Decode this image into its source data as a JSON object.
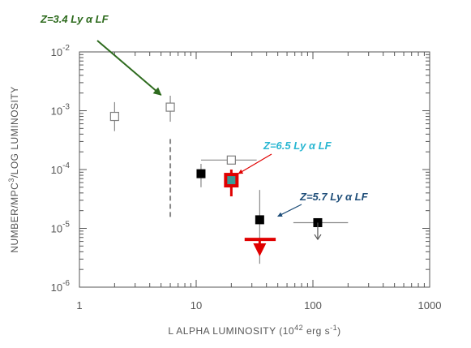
{
  "chart_data": {
    "type": "scatter",
    "title": "",
    "xlabel": "L ALPHA LUMINOSITY (10",
    "xlabel_sup": "42",
    "xlabel_unit": " erg s",
    "xlabel_unit_sup": "-1",
    "xlabel_close": ")",
    "ylabel": "NUMBER/MPC",
    "ylabel_sup": "3",
    "ylabel_rest": "/LOG LUMINOSITY",
    "x_scale": "log",
    "y_scale": "log",
    "xlim": [
      1,
      1000
    ],
    "ylim": [
      1e-06,
      0.01
    ],
    "grid": false,
    "x_ticks": [
      {
        "value": 1,
        "label": "1"
      },
      {
        "value": 10,
        "label": "10"
      },
      {
        "value": 100,
        "label": "100"
      },
      {
        "value": 1000,
        "label": "1000"
      }
    ],
    "y_ticks": [
      {
        "value": 1e-06,
        "base": "10",
        "exp": "-6"
      },
      {
        "value": 1e-05,
        "base": "10",
        "exp": "-5"
      },
      {
        "value": 0.0001,
        "base": "10",
        "exp": "-4"
      },
      {
        "value": 0.001,
        "base": "10",
        "exp": "-3"
      },
      {
        "value": 0.01,
        "base": "10",
        "exp": "-2"
      }
    ],
    "series": [
      {
        "name": "Z=3.4 Ly α LF",
        "marker": "open-square",
        "color": "#808080",
        "points": [
          {
            "x": 2.0,
            "y": 0.0008,
            "ylo": 0.00045,
            "yhi": 0.0014
          },
          {
            "x": 6.0,
            "y": 0.00115,
            "ylo": 0.00065,
            "yhi": 0.0018
          }
        ]
      },
      {
        "name": "Z=5.7 Ly α LF",
        "marker": "filled-square",
        "color": "#000000",
        "points": [
          {
            "x": 11,
            "y": 8.5e-05,
            "ylo": 5e-05,
            "yhi": 0.000125
          },
          {
            "x": 35,
            "y": 1.4e-05,
            "ylo": 6e-06,
            "yhi": 4.5e-05
          },
          {
            "x": 110,
            "y": 1.25e-05,
            "xlo": 68,
            "xhi": 200,
            "arrow_to": 6.5e-06
          }
        ]
      },
      {
        "name": "Z=6.5 Ly α LF",
        "marker": "teal-square",
        "color": "#e00000",
        "fill": "#3a9a96",
        "points": [
          {
            "x": 20,
            "y": 6.6e-05,
            "ylo": 3.5e-05,
            "yhi": 0.0001
          }
        ]
      },
      {
        "name": "",
        "marker": "open-square",
        "color": "#808080",
        "points": [
          {
            "x": 20,
            "y": 0.000145,
            "xlo": 11,
            "xhi": 33
          }
        ]
      },
      {
        "name": "",
        "marker": "upper-limit",
        "color": "#e00000",
        "points": [
          {
            "x": 35,
            "y": 6.5e-06,
            "xlo": 26,
            "xhi": 48,
            "ylo": 2.5e-06,
            "arrow_to": 3.8e-06
          }
        ]
      }
    ],
    "dashed_line": {
      "x": 6.0,
      "y_from": 1.5e-05,
      "y_to": 0.00033,
      "color": "#888888"
    },
    "annotations": [
      {
        "text": "Z=3.4 Ly α LF",
        "color": "#2e6b1e",
        "arrow_to": {
          "x": 5.0,
          "y": 0.00185
        }
      },
      {
        "text": "Z=6.5 Ly α LF",
        "color": "#2ab7d2",
        "arrow_to": {
          "x": 23,
          "y": 8.5e-05
        }
      },
      {
        "text": "Z=5.7 Ly α LF",
        "color": "#1f4e79",
        "arrow_to": {
          "x": 50,
          "y": 1.6e-05
        }
      }
    ]
  }
}
